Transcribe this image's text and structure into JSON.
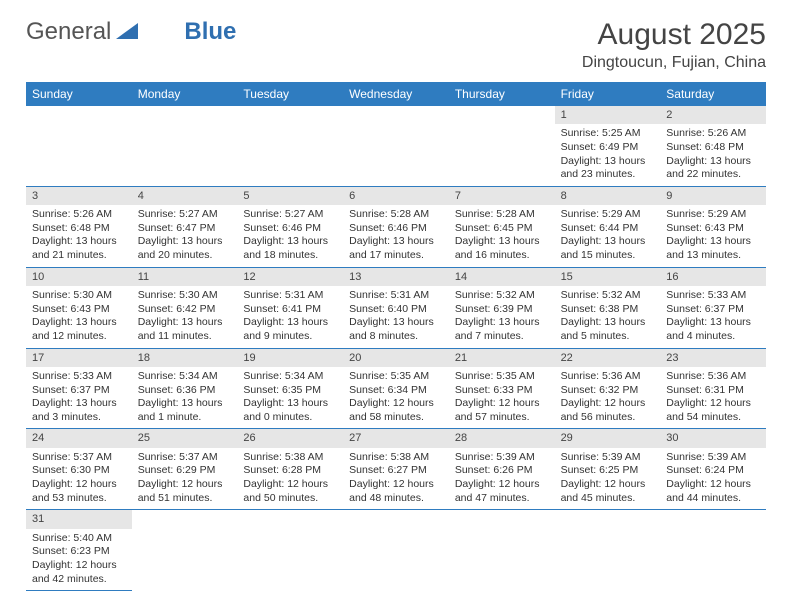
{
  "logo": {
    "text1": "General",
    "text2": "Blue"
  },
  "title": "August 2025",
  "location": "Dingtoucun, Fujian, China",
  "colors": {
    "header_bg": "#2f7cc0",
    "header_text": "#ffffff",
    "daynum_bg": "#e6e6e6",
    "cell_border": "#2f7cc0",
    "body_text": "#333333",
    "logo_gray": "#555555",
    "logo_blue": "#2f6fb0"
  },
  "weekdays": [
    "Sunday",
    "Monday",
    "Tuesday",
    "Wednesday",
    "Thursday",
    "Friday",
    "Saturday"
  ],
  "blanks_before": 5,
  "days": [
    {
      "n": 1,
      "sr": "5:25 AM",
      "ss": "6:49 PM",
      "dl": "13 hours and 23 minutes."
    },
    {
      "n": 2,
      "sr": "5:26 AM",
      "ss": "6:48 PM",
      "dl": "13 hours and 22 minutes."
    },
    {
      "n": 3,
      "sr": "5:26 AM",
      "ss": "6:48 PM",
      "dl": "13 hours and 21 minutes."
    },
    {
      "n": 4,
      "sr": "5:27 AM",
      "ss": "6:47 PM",
      "dl": "13 hours and 20 minutes."
    },
    {
      "n": 5,
      "sr": "5:27 AM",
      "ss": "6:46 PM",
      "dl": "13 hours and 18 minutes."
    },
    {
      "n": 6,
      "sr": "5:28 AM",
      "ss": "6:46 PM",
      "dl": "13 hours and 17 minutes."
    },
    {
      "n": 7,
      "sr": "5:28 AM",
      "ss": "6:45 PM",
      "dl": "13 hours and 16 minutes."
    },
    {
      "n": 8,
      "sr": "5:29 AM",
      "ss": "6:44 PM",
      "dl": "13 hours and 15 minutes."
    },
    {
      "n": 9,
      "sr": "5:29 AM",
      "ss": "6:43 PM",
      "dl": "13 hours and 13 minutes."
    },
    {
      "n": 10,
      "sr": "5:30 AM",
      "ss": "6:43 PM",
      "dl": "13 hours and 12 minutes."
    },
    {
      "n": 11,
      "sr": "5:30 AM",
      "ss": "6:42 PM",
      "dl": "13 hours and 11 minutes."
    },
    {
      "n": 12,
      "sr": "5:31 AM",
      "ss": "6:41 PM",
      "dl": "13 hours and 9 minutes."
    },
    {
      "n": 13,
      "sr": "5:31 AM",
      "ss": "6:40 PM",
      "dl": "13 hours and 8 minutes."
    },
    {
      "n": 14,
      "sr": "5:32 AM",
      "ss": "6:39 PM",
      "dl": "13 hours and 7 minutes."
    },
    {
      "n": 15,
      "sr": "5:32 AM",
      "ss": "6:38 PM",
      "dl": "13 hours and 5 minutes."
    },
    {
      "n": 16,
      "sr": "5:33 AM",
      "ss": "6:37 PM",
      "dl": "13 hours and 4 minutes."
    },
    {
      "n": 17,
      "sr": "5:33 AM",
      "ss": "6:37 PM",
      "dl": "13 hours and 3 minutes."
    },
    {
      "n": 18,
      "sr": "5:34 AM",
      "ss": "6:36 PM",
      "dl": "13 hours and 1 minute."
    },
    {
      "n": 19,
      "sr": "5:34 AM",
      "ss": "6:35 PM",
      "dl": "13 hours and 0 minutes."
    },
    {
      "n": 20,
      "sr": "5:35 AM",
      "ss": "6:34 PM",
      "dl": "12 hours and 58 minutes."
    },
    {
      "n": 21,
      "sr": "5:35 AM",
      "ss": "6:33 PM",
      "dl": "12 hours and 57 minutes."
    },
    {
      "n": 22,
      "sr": "5:36 AM",
      "ss": "6:32 PM",
      "dl": "12 hours and 56 minutes."
    },
    {
      "n": 23,
      "sr": "5:36 AM",
      "ss": "6:31 PM",
      "dl": "12 hours and 54 minutes."
    },
    {
      "n": 24,
      "sr": "5:37 AM",
      "ss": "6:30 PM",
      "dl": "12 hours and 53 minutes."
    },
    {
      "n": 25,
      "sr": "5:37 AM",
      "ss": "6:29 PM",
      "dl": "12 hours and 51 minutes."
    },
    {
      "n": 26,
      "sr": "5:38 AM",
      "ss": "6:28 PM",
      "dl": "12 hours and 50 minutes."
    },
    {
      "n": 27,
      "sr": "5:38 AM",
      "ss": "6:27 PM",
      "dl": "12 hours and 48 minutes."
    },
    {
      "n": 28,
      "sr": "5:39 AM",
      "ss": "6:26 PM",
      "dl": "12 hours and 47 minutes."
    },
    {
      "n": 29,
      "sr": "5:39 AM",
      "ss": "6:25 PM",
      "dl": "12 hours and 45 minutes."
    },
    {
      "n": 30,
      "sr": "5:39 AM",
      "ss": "6:24 PM",
      "dl": "12 hours and 44 minutes."
    },
    {
      "n": 31,
      "sr": "5:40 AM",
      "ss": "6:23 PM",
      "dl": "12 hours and 42 minutes."
    }
  ],
  "labels": {
    "sunrise": "Sunrise: ",
    "sunset": "Sunset: ",
    "daylight": "Daylight: "
  }
}
